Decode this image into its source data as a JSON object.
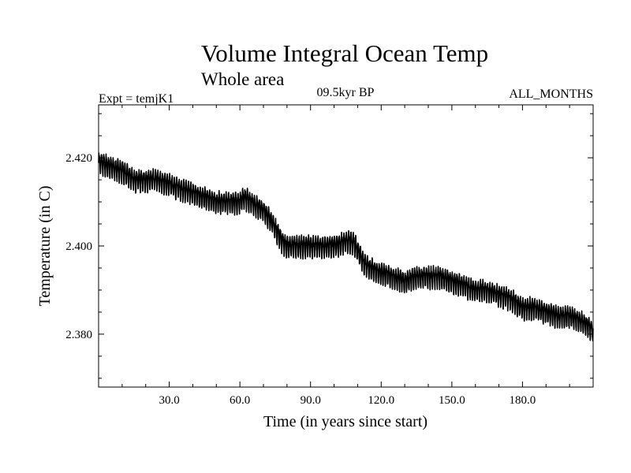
{
  "chart_data": {
    "type": "line",
    "title": "Volume Integral Ocean Temp",
    "subtitle": "Whole area",
    "annotations": {
      "left": "Expt = temjK1",
      "center": "09.5kyr BP",
      "right": "ALL_MONTHS"
    },
    "xlabel": "Time (in years since start)",
    "ylabel": "Temperature (in C)",
    "xlim": [
      0,
      210
    ],
    "ylim": [
      2.368,
      2.432
    ],
    "xticks": [
      30,
      60,
      90,
      120,
      150,
      180
    ],
    "xtick_labels": [
      "30.0",
      "60.0",
      "90.0",
      "120.0",
      "150.0",
      "180.0"
    ],
    "yticks": [
      2.38,
      2.4,
      2.42
    ],
    "ytick_labels": [
      "2.380",
      "2.400",
      "2.420"
    ],
    "grid": false,
    "series": [
      {
        "name": "Volume integral ocean temperature",
        "color": "#000000",
        "x": [
          0,
          5,
          10,
          15,
          20,
          25,
          30,
          35,
          40,
          45,
          50,
          55,
          60,
          62,
          65,
          70,
          73,
          75,
          78,
          80,
          85,
          90,
          95,
          100,
          105,
          108,
          110,
          113,
          115,
          120,
          125,
          130,
          135,
          140,
          145,
          150,
          155,
          160,
          165,
          170,
          175,
          180,
          185,
          190,
          195,
          200,
          205,
          210
        ],
        "values": [
          2.419,
          2.418,
          2.417,
          2.415,
          2.415,
          2.415,
          2.414,
          2.413,
          2.412,
          2.411,
          2.41,
          2.41,
          2.41,
          2.411,
          2.41,
          2.408,
          2.406,
          2.404,
          2.401,
          2.4,
          2.4,
          2.4,
          2.4,
          2.4,
          2.401,
          2.401,
          2.399,
          2.396,
          2.395,
          2.394,
          2.393,
          2.392,
          2.393,
          2.393,
          2.393,
          2.392,
          2.391,
          2.39,
          2.39,
          2.389,
          2.388,
          2.386,
          2.386,
          2.385,
          2.384,
          2.384,
          2.383,
          2.381
        ]
      }
    ]
  }
}
